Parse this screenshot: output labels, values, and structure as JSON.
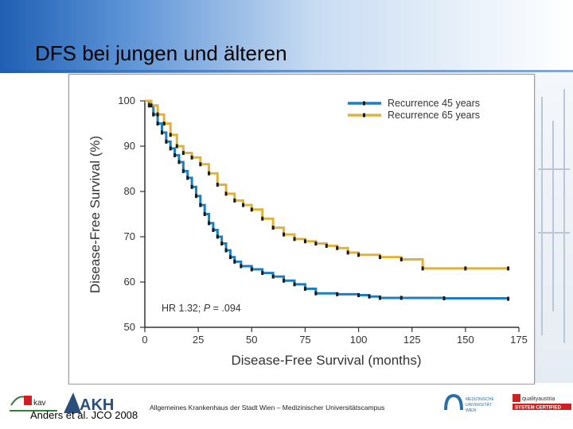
{
  "slide": {
    "title": "DFS bei jungen und älteren",
    "citation": "Anders et al. JCO 2008",
    "footer_text": "Allgemeines Krankenhaus der Stadt Wien – Medizinischer Universitätscampus"
  },
  "logos": {
    "kav_text": "kav",
    "akh_text": "AKH",
    "meduni_text": "MEDIZINISCHE UNIVERSITÄT WIEN",
    "quality_text": "qualityaustria",
    "quality_sub": "SYSTEM CERTIFIED"
  },
  "colors": {
    "series_45": "#1e7fc0",
    "series_65": "#e0b23a",
    "censor_mark": "#1a1a1a",
    "header_blue": "#1f5fb3"
  },
  "chart_data": {
    "type": "line",
    "step": true,
    "xlabel": "Disease-Free Survival (months)",
    "ylabel": "Disease-Free Survival (%)",
    "xlim": [
      0,
      175
    ],
    "ylim": [
      50,
      100
    ],
    "xticks": [
      0,
      25,
      50,
      75,
      100,
      125,
      150,
      175
    ],
    "yticks": [
      50,
      60,
      70,
      80,
      90,
      100
    ],
    "legend_position": "top-right",
    "annotation": {
      "text_before": "HR 1.32; ",
      "p_label": "P",
      "text_after": " = .094",
      "x": 8,
      "y": 54
    },
    "series": [
      {
        "name": "Recurrence 45 years",
        "color_key": "series_45",
        "points": [
          [
            0,
            100
          ],
          [
            2,
            99
          ],
          [
            4,
            97
          ],
          [
            6,
            95
          ],
          [
            8,
            93
          ],
          [
            10,
            91
          ],
          [
            12,
            89.5
          ],
          [
            14,
            88
          ],
          [
            16,
            86.5
          ],
          [
            18,
            84.5
          ],
          [
            20,
            83
          ],
          [
            22,
            81
          ],
          [
            24,
            79
          ],
          [
            26,
            77
          ],
          [
            28,
            75
          ],
          [
            30,
            73
          ],
          [
            32,
            71.5
          ],
          [
            34,
            70
          ],
          [
            36,
            68.5
          ],
          [
            38,
            67
          ],
          [
            40,
            65.5
          ],
          [
            42,
            64.5
          ],
          [
            45,
            63.5
          ],
          [
            50,
            62.8
          ],
          [
            55,
            62
          ],
          [
            60,
            61.2
          ],
          [
            65,
            60.3
          ],
          [
            70,
            59.5
          ],
          [
            75,
            58.5
          ],
          [
            80,
            57.5
          ],
          [
            90,
            57.3
          ],
          [
            100,
            57.1
          ],
          [
            105,
            56.8
          ],
          [
            110,
            56.5
          ],
          [
            120,
            56.5
          ],
          [
            140,
            56.4
          ],
          [
            170,
            56.3
          ]
        ]
      },
      {
        "name": "Recurrence 65 years",
        "color_key": "series_65",
        "points": [
          [
            0,
            100
          ],
          [
            3,
            99
          ],
          [
            6,
            97
          ],
          [
            9,
            95
          ],
          [
            12,
            92.5
          ],
          [
            15,
            90
          ],
          [
            18,
            88.5
          ],
          [
            22,
            87.5
          ],
          [
            26,
            86
          ],
          [
            30,
            84
          ],
          [
            34,
            81.5
          ],
          [
            38,
            79.5
          ],
          [
            42,
            78
          ],
          [
            46,
            77
          ],
          [
            50,
            76
          ],
          [
            55,
            74
          ],
          [
            60,
            72
          ],
          [
            65,
            70.5
          ],
          [
            70,
            69.5
          ],
          [
            75,
            69
          ],
          [
            80,
            68.5
          ],
          [
            85,
            68
          ],
          [
            90,
            67.5
          ],
          [
            95,
            66.5
          ],
          [
            100,
            66
          ],
          [
            110,
            65.5
          ],
          [
            120,
            65
          ],
          [
            130,
            63
          ],
          [
            150,
            63
          ],
          [
            170,
            63
          ]
        ]
      }
    ]
  }
}
